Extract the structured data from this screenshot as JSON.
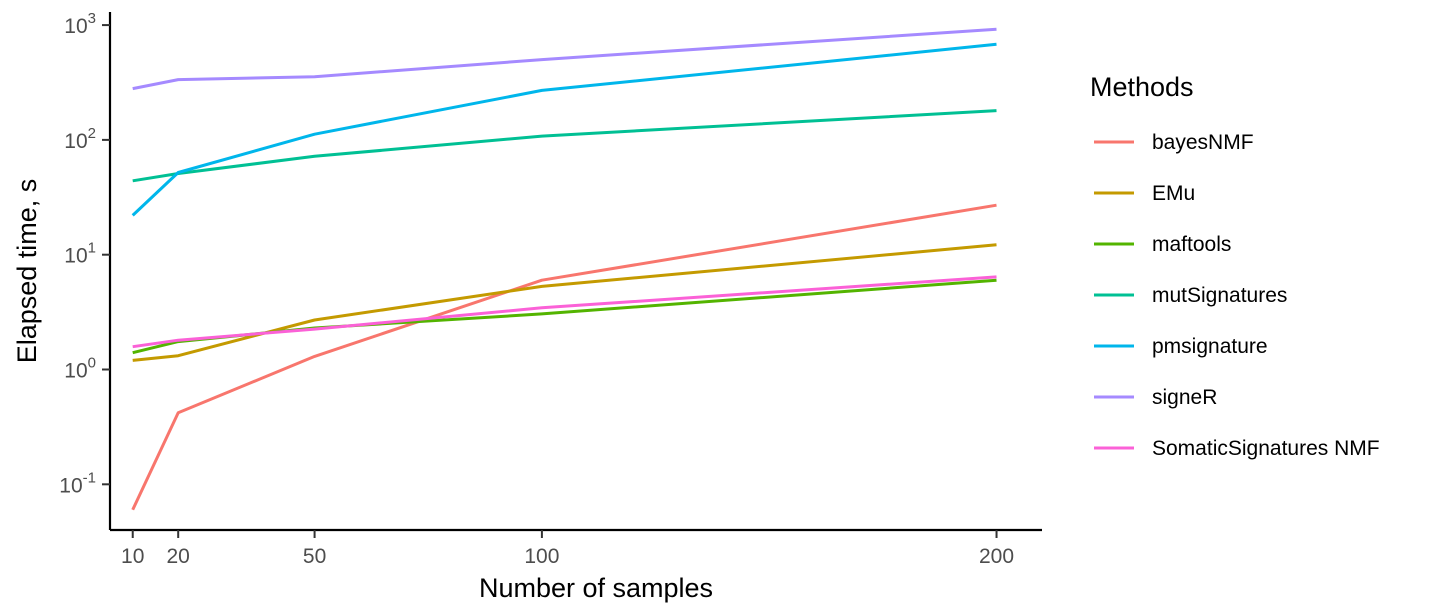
{
  "chart_data": {
    "type": "line",
    "title": "",
    "xlabel": "Number of samples",
    "ylabel": "Elapsed time, s",
    "x": [
      10,
      20,
      50,
      100,
      200
    ],
    "x_ticks": [
      10,
      20,
      50,
      100,
      200
    ],
    "y_scale": "log10",
    "y_ticks": [
      {
        "value": 0.1,
        "base": "10",
        "exp": "-1"
      },
      {
        "value": 1,
        "base": "10",
        "exp": "0"
      },
      {
        "value": 10,
        "base": "10",
        "exp": "1"
      },
      {
        "value": 100,
        "base": "10",
        "exp": "2"
      },
      {
        "value": 1000,
        "base": "10",
        "exp": "3"
      }
    ],
    "xlim": [
      5,
      210
    ],
    "ylim": [
      0.04,
      1300
    ],
    "grid": false,
    "legend": {
      "title": "Methods",
      "placement": "right"
    },
    "series": [
      {
        "name": "bayesNMF",
        "color": "#F8766D",
        "values": [
          0.06,
          0.42,
          1.3,
          6.0,
          27
        ]
      },
      {
        "name": "EMu",
        "color": "#C49A00",
        "values": [
          1.2,
          1.32,
          2.7,
          5.3,
          12.2
        ]
      },
      {
        "name": "maftools",
        "color": "#53B400",
        "values": [
          1.4,
          1.75,
          2.3,
          3.05,
          6.0
        ]
      },
      {
        "name": "mutSignatures",
        "color": "#00C094",
        "values": [
          44,
          51,
          72,
          108,
          180
        ]
      },
      {
        "name": "pmsignature",
        "color": "#00B6EB",
        "values": [
          22,
          52,
          112,
          270,
          680
        ]
      },
      {
        "name": "signeR",
        "color": "#A58AFF",
        "values": [
          280,
          335,
          355,
          500,
          920
        ]
      },
      {
        "name": "SomaticSignatures NMF",
        "color": "#FB61D7",
        "values": [
          1.58,
          1.8,
          2.25,
          3.45,
          6.4
        ]
      }
    ]
  }
}
